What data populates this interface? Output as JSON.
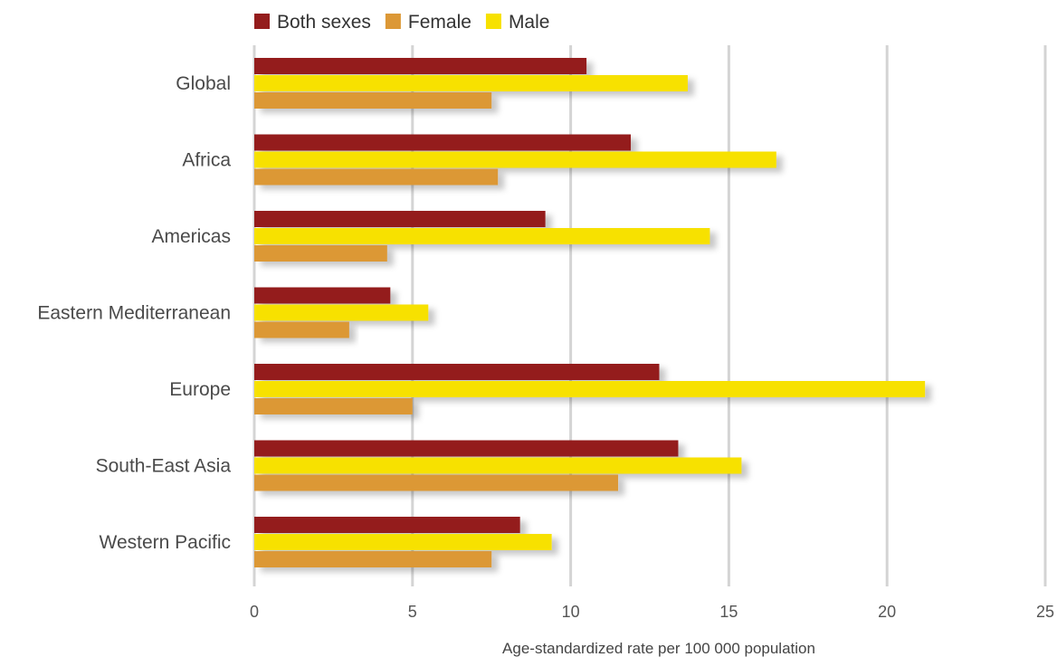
{
  "chart_data": {
    "type": "bar",
    "orientation": "horizontal",
    "title": "",
    "xlabel": "Age-standardized rate per 100 000 population",
    "ylabel": "",
    "xlim": [
      0,
      25
    ],
    "x_ticks": [
      0,
      5,
      10,
      15,
      20,
      25
    ],
    "grid": "vertical",
    "legend_position": "top",
    "categories": [
      "Global",
      "Africa",
      "Americas",
      "Eastern Mediterranean",
      "Europe",
      "South-East Asia",
      "Western Pacific"
    ],
    "series": [
      {
        "name": "Both sexes",
        "color": "#941c1c",
        "values": [
          10.5,
          11.9,
          9.2,
          4.3,
          12.8,
          13.4,
          8.4
        ]
      },
      {
        "name": "Male",
        "color": "#f7e100",
        "values": [
          13.7,
          16.5,
          14.4,
          5.5,
          21.2,
          15.4,
          9.4
        ]
      },
      {
        "name": "Female",
        "color": "#dc9836",
        "values": [
          7.5,
          7.7,
          4.2,
          3.0,
          5.0,
          11.5,
          7.5
        ]
      }
    ],
    "legend": [
      {
        "name": "Both sexes",
        "color": "#941c1c"
      },
      {
        "name": "Female",
        "color": "#dc9836"
      },
      {
        "name": "Male",
        "color": "#f7e100"
      }
    ]
  }
}
